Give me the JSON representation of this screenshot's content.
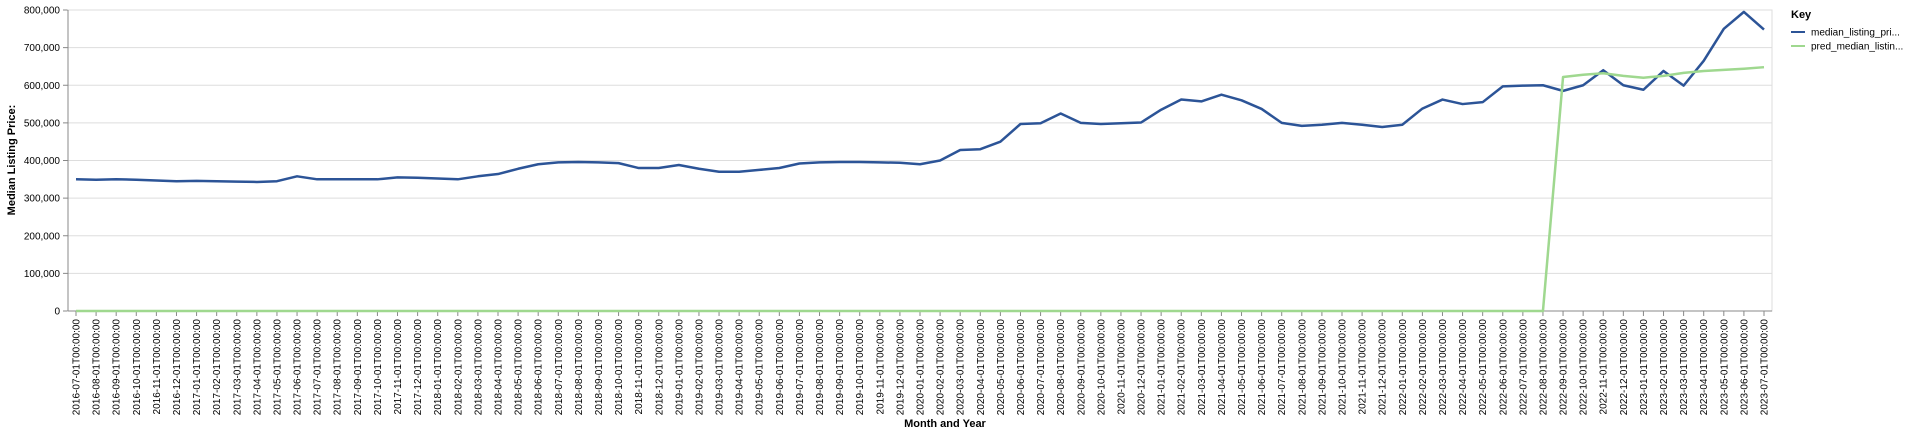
{
  "chart_data": {
    "type": "line",
    "xlabel": "Month and Year",
    "ylabel": "Median Listing Price:",
    "legend_title": "Key",
    "legend": "top-right",
    "grid": true,
    "ylim": [
      0,
      800000
    ],
    "yticks": [
      0,
      {
        "value": 100000,
        "label": "100,000"
      },
      {
        "value": 200000,
        "label": "200,000"
      },
      {
        "value": 300000,
        "label": "300,000"
      },
      {
        "value": 400000,
        "label": "400,000"
      },
      {
        "value": 500000,
        "label": "500,000"
      },
      {
        "value": 600000,
        "label": "600,000"
      },
      {
        "value": 700000,
        "label": "700,000"
      },
      {
        "value": 800000,
        "label": "800,000"
      }
    ],
    "categories": [
      "2016-07-01T00:00:00",
      "2016-08-01T00:00:00",
      "2016-09-01T00:00:00",
      "2016-10-01T00:00:00",
      "2016-11-01T00:00:00",
      "2016-12-01T00:00:00",
      "2017-01-01T00:00:00",
      "2017-02-01T00:00:00",
      "2017-03-01T00:00:00",
      "2017-04-01T00:00:00",
      "2017-05-01T00:00:00",
      "2017-06-01T00:00:00",
      "2017-07-01T00:00:00",
      "2017-08-01T00:00:00",
      "2017-09-01T00:00:00",
      "2017-10-01T00:00:00",
      "2017-11-01T00:00:00",
      "2017-12-01T00:00:00",
      "2018-01-01T00:00:00",
      "2018-02-01T00:00:00",
      "2018-03-01T00:00:00",
      "2018-04-01T00:00:00",
      "2018-05-01T00:00:00",
      "2018-06-01T00:00:00",
      "2018-07-01T00:00:00",
      "2018-08-01T00:00:00",
      "2018-09-01T00:00:00",
      "2018-10-01T00:00:00",
      "2018-11-01T00:00:00",
      "2018-12-01T00:00:00",
      "2019-01-01T00:00:00",
      "2019-02-01T00:00:00",
      "2019-03-01T00:00:00",
      "2019-04-01T00:00:00",
      "2019-05-01T00:00:00",
      "2019-06-01T00:00:00",
      "2019-07-01T00:00:00",
      "2019-08-01T00:00:00",
      "2019-09-01T00:00:00",
      "2019-10-01T00:00:00",
      "2019-11-01T00:00:00",
      "2019-12-01T00:00:00",
      "2020-01-01T00:00:00",
      "2020-02-01T00:00:00",
      "2020-03-01T00:00:00",
      "2020-04-01T00:00:00",
      "2020-05-01T00:00:00",
      "2020-06-01T00:00:00",
      "2020-07-01T00:00:00",
      "2020-08-01T00:00:00",
      "2020-09-01T00:00:00",
      "2020-10-01T00:00:00",
      "2020-11-01T00:00:00",
      "2020-12-01T00:00:00",
      "2021-01-01T00:00:00",
      "2021-02-01T00:00:00",
      "2021-03-01T00:00:00",
      "2021-04-01T00:00:00",
      "2021-05-01T00:00:00",
      "2021-06-01T00:00:00",
      "2021-07-01T00:00:00",
      "2021-08-01T00:00:00",
      "2021-09-01T00:00:00",
      "2021-10-01T00:00:00",
      "2021-11-01T00:00:00",
      "2021-12-01T00:00:00",
      "2022-01-01T00:00:00",
      "2022-02-01T00:00:00",
      "2022-03-01T00:00:00",
      "2022-04-01T00:00:00",
      "2022-05-01T00:00:00",
      "2022-06-01T00:00:00",
      "2022-07-01T00:00:00",
      "2022-08-01T00:00:00",
      "2022-09-01T00:00:00",
      "2022-10-01T00:00:00",
      "2022-11-01T00:00:00",
      "2022-12-01T00:00:00",
      "2023-01-01T00:00:00",
      "2023-02-01T00:00:00",
      "2023-03-01T00:00:00",
      "2023-04-01T00:00:00",
      "2023-05-01T00:00:00",
      "2023-06-01T00:00:00",
      "2023-07-01T00:00:00"
    ],
    "series": [
      {
        "name": "median_listing_pri...",
        "color": "#2c5497",
        "values": [
          350000,
          349000,
          350000,
          349000,
          347000,
          345000,
          346000,
          345000,
          344000,
          343000,
          345000,
          358000,
          350000,
          350000,
          350000,
          350000,
          355000,
          354000,
          352000,
          350000,
          358000,
          364000,
          378000,
          390000,
          395000,
          396000,
          395000,
          393000,
          380000,
          380000,
          388000,
          378000,
          370000,
          370000,
          375000,
          380000,
          392000,
          395000,
          396000,
          396000,
          395000,
          394000,
          390000,
          400000,
          428000,
          430000,
          450000,
          497000,
          499000,
          525000,
          500000,
          497000,
          499000,
          501000,
          535000,
          562000,
          557000,
          575000,
          560000,
          537000,
          500000,
          492000,
          495000,
          500000,
          495000,
          489000,
          495000,
          538000,
          562000,
          550000,
          555000,
          597000,
          599000,
          600000,
          585000,
          600000,
          640000,
          600000,
          588000,
          638000,
          599000,
          665000,
          750000,
          795000,
          748000
        ]
      },
      {
        "name": "pred_median_listin...",
        "color": "#9fd88f",
        "values": [
          0,
          0,
          0,
          0,
          0,
          0,
          0,
          0,
          0,
          0,
          0,
          0,
          0,
          0,
          0,
          0,
          0,
          0,
          0,
          0,
          0,
          0,
          0,
          0,
          0,
          0,
          0,
          0,
          0,
          0,
          0,
          0,
          0,
          0,
          0,
          0,
          0,
          0,
          0,
          0,
          0,
          0,
          0,
          0,
          0,
          0,
          0,
          0,
          0,
          0,
          0,
          0,
          0,
          0,
          0,
          0,
          0,
          0,
          0,
          0,
          0,
          0,
          0,
          0,
          0,
          0,
          0,
          0,
          0,
          0,
          0,
          0,
          0,
          0,
          622000,
          628000,
          632000,
          625000,
          620000,
          625000,
          633000,
          638000,
          641000,
          644000,
          648000
        ]
      }
    ]
  }
}
